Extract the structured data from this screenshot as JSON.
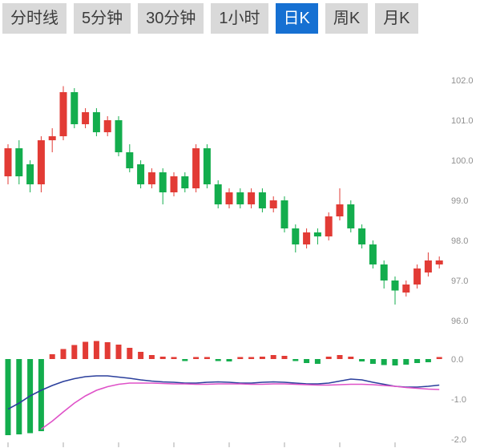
{
  "tabs": {
    "active_index": 4,
    "active_bg": "#1670d2",
    "active_text": "#ffffff",
    "items": [
      {
        "label": "分时线"
      },
      {
        "label": "5分钟"
      },
      {
        "label": "30分钟"
      },
      {
        "label": "1小时"
      },
      {
        "label": "日K"
      },
      {
        "label": "周K"
      },
      {
        "label": "月K"
      }
    ]
  },
  "chart_data": {
    "type": "candlestick",
    "title": "",
    "xlabel": "",
    "ylabel": "",
    "legend": "none",
    "grid": false,
    "y_axis_main_ticks": [
      102.0,
      101.0,
      100.0,
      99.0,
      98.0,
      97.0,
      96.0
    ],
    "y_axis_indicator_ticks": [
      0.0,
      -1.0,
      -2.0
    ],
    "main_ylim": [
      95.8,
      102.2
    ],
    "indicator_ylim": [
      -2.2,
      0.6
    ],
    "candles_ohlc": [
      [
        99.6,
        100.4,
        99.4,
        100.3
      ],
      [
        100.3,
        100.5,
        99.4,
        99.6
      ],
      [
        99.9,
        100.0,
        99.2,
        99.4
      ],
      [
        99.4,
        100.6,
        99.2,
        100.5
      ],
      [
        100.5,
        100.8,
        100.2,
        100.6
      ],
      [
        100.6,
        101.85,
        100.5,
        101.7
      ],
      [
        101.7,
        101.8,
        100.8,
        100.9
      ],
      [
        100.9,
        101.3,
        100.8,
        101.2
      ],
      [
        101.2,
        101.3,
        100.6,
        100.7
      ],
      [
        100.7,
        101.1,
        100.6,
        101.0
      ],
      [
        101.0,
        101.1,
        100.1,
        100.2
      ],
      [
        100.2,
        100.4,
        99.7,
        99.8
      ],
      [
        99.9,
        100.0,
        99.3,
        99.4
      ],
      [
        99.4,
        99.8,
        99.3,
        99.7
      ],
      [
        99.7,
        99.8,
        98.9,
        99.2
      ],
      [
        99.2,
        99.7,
        99.1,
        99.6
      ],
      [
        99.6,
        99.7,
        99.2,
        99.3
      ],
      [
        99.3,
        100.4,
        99.2,
        100.3
      ],
      [
        100.3,
        100.4,
        99.3,
        99.4
      ],
      [
        99.4,
        99.5,
        98.8,
        98.9
      ],
      [
        98.9,
        99.3,
        98.8,
        99.2
      ],
      [
        99.2,
        99.3,
        98.8,
        98.9
      ],
      [
        98.9,
        99.3,
        98.8,
        99.2
      ],
      [
        99.2,
        99.3,
        98.7,
        98.8
      ],
      [
        98.8,
        99.1,
        98.7,
        99.0
      ],
      [
        99.0,
        99.1,
        98.2,
        98.3
      ],
      [
        98.3,
        98.4,
        97.7,
        97.9
      ],
      [
        97.9,
        98.3,
        97.8,
        98.2
      ],
      [
        98.2,
        98.3,
        97.9,
        98.1
      ],
      [
        98.1,
        98.7,
        98.0,
        98.6
      ],
      [
        98.6,
        99.3,
        98.5,
        98.9
      ],
      [
        98.9,
        99.0,
        98.2,
        98.3
      ],
      [
        98.3,
        98.4,
        97.8,
        97.9
      ],
      [
        97.9,
        98.0,
        97.3,
        97.4
      ],
      [
        97.4,
        97.5,
        96.8,
        97.0
      ],
      [
        97.0,
        97.1,
        96.4,
        96.75
      ],
      [
        96.7,
        97.0,
        96.6,
        96.9
      ],
      [
        96.9,
        97.4,
        96.8,
        97.3
      ],
      [
        97.2,
        97.7,
        97.1,
        97.5
      ],
      [
        97.4,
        97.6,
        97.3,
        97.5
      ]
    ],
    "macd": {
      "histogram": [
        -1.9,
        -1.88,
        -1.85,
        -1.8,
        0.12,
        0.25,
        0.35,
        0.43,
        0.45,
        0.42,
        0.36,
        0.28,
        0.18,
        0.1,
        0.06,
        0.04,
        -0.04,
        0.04,
        0.05,
        -0.04,
        -0.06,
        0.04,
        0.05,
        0.06,
        0.1,
        0.08,
        -0.05,
        -0.1,
        -0.12,
        0.06,
        0.1,
        0.06,
        -0.06,
        -0.12,
        -0.15,
        -0.16,
        -0.14,
        -0.1,
        -0.08,
        0.05
      ],
      "dif": [
        -1.25,
        -1.1,
        -0.92,
        -0.78,
        -0.66,
        -0.56,
        -0.49,
        -0.44,
        -0.42,
        -0.42,
        -0.45,
        -0.48,
        -0.52,
        -0.55,
        -0.57,
        -0.58,
        -0.6,
        -0.6,
        -0.58,
        -0.57,
        -0.58,
        -0.6,
        -0.6,
        -0.58,
        -0.57,
        -0.58,
        -0.6,
        -0.62,
        -0.62,
        -0.6,
        -0.55,
        -0.5,
        -0.52,
        -0.58,
        -0.63,
        -0.68,
        -0.7,
        -0.7,
        -0.68,
        -0.65
      ],
      "dea": [
        null,
        null,
        null,
        -1.75,
        -1.55,
        -1.32,
        -1.1,
        -0.92,
        -0.78,
        -0.69,
        -0.63,
        -0.6,
        -0.6,
        -0.6,
        -0.61,
        -0.62,
        -0.62,
        -0.63,
        -0.63,
        -0.62,
        -0.62,
        -0.62,
        -0.63,
        -0.63,
        -0.62,
        -0.62,
        -0.63,
        -0.64,
        -0.65,
        -0.65,
        -0.64,
        -0.63,
        -0.63,
        -0.64,
        -0.66,
        -0.68,
        -0.71,
        -0.73,
        -0.75,
        -0.76
      ]
    },
    "colors": {
      "up": "#e23b35",
      "down": "#13ad4d",
      "dif_line": "#2b3f9c",
      "dea_line": "#df52c8",
      "axis_text": "#909090",
      "tick": "#a8a8a8"
    }
  }
}
